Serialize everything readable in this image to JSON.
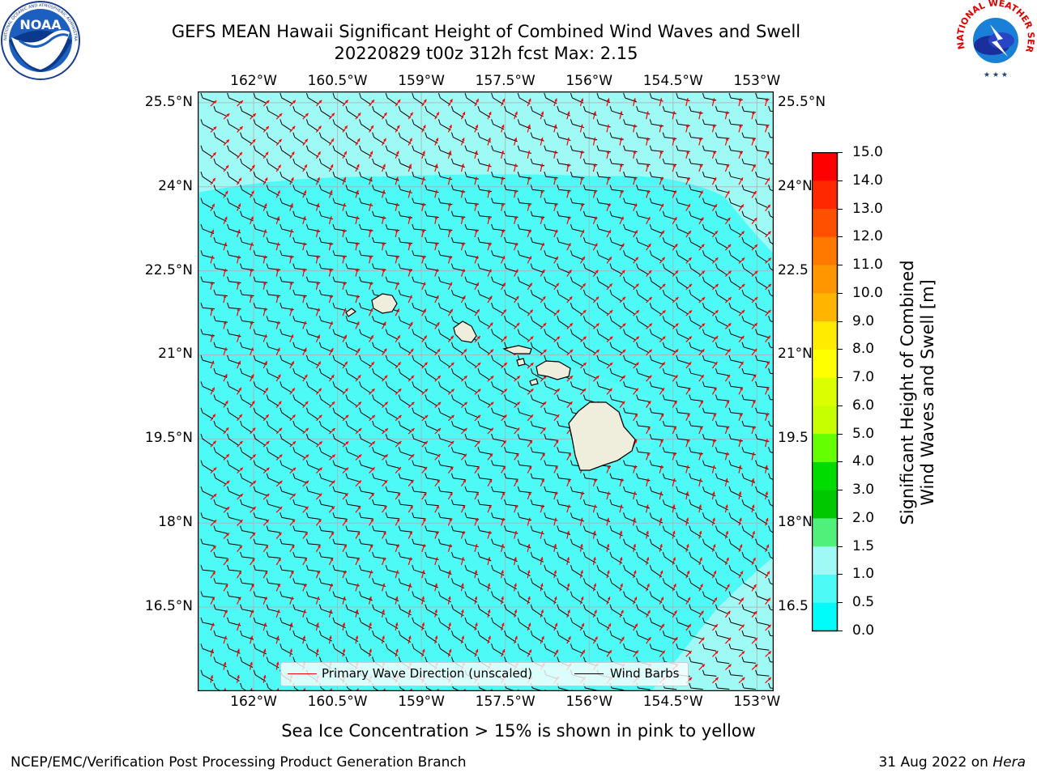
{
  "header": {
    "title_line1": "GEFS MEAN Hawaii Significant Height of Combined Wind Waves and Swell",
    "title_line2": "20220829 t00z 312h fcst   Max: 2.15"
  },
  "logos": {
    "left": {
      "text": "NOAA",
      "ring_text": "NATIONAL OCEANIC AND ATMOSPHERIC ADMINISTRATION · U.S. DEPARTMENT OF COMMERCE"
    },
    "right": {
      "ring_text": "NATIONAL WEATHER SERVICE"
    }
  },
  "map": {
    "lon_ticks": [
      "162°W",
      "160.5°W",
      "159°W",
      "157.5°W",
      "156°W",
      "154.5°W",
      "153°W"
    ],
    "lon_values": [
      -162,
      -160.5,
      -159,
      -157.5,
      -156,
      -154.5,
      -153
    ],
    "lat_ticks": [
      "25.5°N",
      "24°N",
      "22.5°N",
      "21°N",
      "19.5°N",
      "18°N",
      "16.5°N"
    ],
    "lat_values": [
      25.5,
      24,
      22.5,
      21,
      19.5,
      18,
      16.5
    ],
    "lat_ticks_right": [
      "25.5°N",
      "24°N",
      "22.5",
      "21°N",
      "19.5",
      "18°N",
      "16.5"
    ],
    "extent": {
      "lon_min": -163,
      "lon_max": -152.7,
      "lat_min": 15.0,
      "lat_max": 25.7
    },
    "colors": {
      "ocean": "#4dfaf6",
      "ocean_light": "#9ff9f4",
      "land": "#efeedc",
      "coast": "#000000",
      "wind": "#000000",
      "wave": "#ff0000",
      "grid": "#b0b0b0"
    }
  },
  "legend": {
    "items": [
      {
        "label": "Primary Wave Direction (unscaled)",
        "color": "#ff0000"
      },
      {
        "label": "Wind Barbs",
        "color": "#000000"
      }
    ]
  },
  "colorbar": {
    "label_line1": "Significant Height of Combined",
    "label_line2": "Wind Waves and Swell [m]",
    "ticks": [
      "15.0",
      "14.0",
      "13.0",
      "12.0",
      "11.0",
      "10.0",
      "9.0",
      "8.0",
      "7.0",
      "6.0",
      "5.0",
      "4.0",
      "3.0",
      "2.0",
      "1.5",
      "1.0",
      "0.5",
      "0.0"
    ],
    "colors": [
      "#ff0000",
      "#ff2800",
      "#ff5000",
      "#ff7800",
      "#ff9600",
      "#ffb400",
      "#ffeb00",
      "#ffff00",
      "#dcff00",
      "#c8ff00",
      "#64ff00",
      "#00dc00",
      "#00c800",
      "#50f07a",
      "#9ff9f4",
      "#4dfaf6",
      "#00fbfb",
      "#0080ff",
      "#0000ff"
    ]
  },
  "note": "Sea Ice Concentration > 15% is shown in pink to yellow",
  "footer": {
    "left": "NCEP/EMC/Verification Post Processing Product Generation Branch",
    "right_prefix": "31 Aug 2022 on ",
    "right_host": "Hera"
  }
}
